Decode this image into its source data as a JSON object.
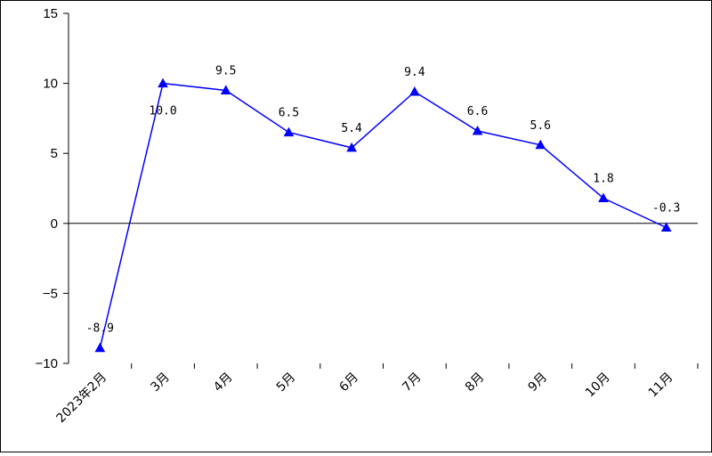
{
  "chart_data": {
    "type": "line",
    "categories": [
      "2023年2月",
      "3月",
      "4月",
      "5月",
      "6月",
      "7月",
      "8月",
      "9月",
      "10月",
      "11月"
    ],
    "series": [
      {
        "values": [
          -8.9,
          10.0,
          9.5,
          6.5,
          5.4,
          9.4,
          6.6,
          5.6,
          1.8,
          -0.3
        ]
      }
    ],
    "data_labels": [
      "-8.9",
      "10.0",
      "9.5",
      "6.5",
      "5.4",
      "9.4",
      "6.6",
      "5.6",
      "1.8",
      "-0.3"
    ],
    "y_ticks": [
      "15",
      "10",
      "5",
      "0",
      "−5",
      "−10"
    ],
    "y_tick_values": [
      15,
      10,
      5,
      0,
      -5,
      -10
    ],
    "ylim": [
      -10,
      15
    ],
    "line_color": "#0000ff",
    "marker": "triangle",
    "grid": false,
    "legend": "none"
  }
}
